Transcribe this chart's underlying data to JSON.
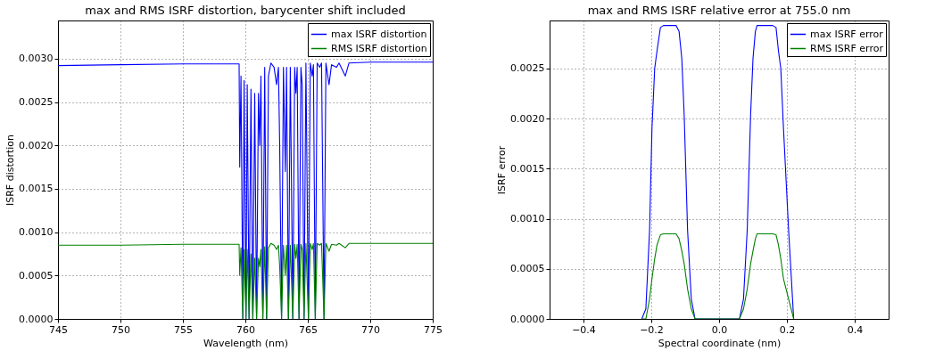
{
  "chart_data": [
    {
      "type": "line",
      "title": "max and RMS ISRF distortion, barycenter shift included",
      "xlabel": "Wavelength (nm)",
      "ylabel": "ISRF distortion",
      "x": [
        745,
        750,
        755,
        759.5,
        759.55,
        759.65,
        759.8,
        759.9,
        760.05,
        760.15,
        760.3,
        760.45,
        760.6,
        760.75,
        760.9,
        761.05,
        761.15,
        761.25,
        761.4,
        761.55,
        761.7,
        761.85,
        762.05,
        762.3,
        762.5,
        762.65,
        762.75,
        762.9,
        763.05,
        763.2,
        763.3,
        763.45,
        763.6,
        763.8,
        763.95,
        764.05,
        764.15,
        764.3,
        764.45,
        764.55,
        764.7,
        764.85,
        765.05,
        765.2,
        765.35,
        765.45,
        765.6,
        765.75,
        765.95,
        766.1,
        766.3,
        766.45,
        766.7,
        766.9,
        767.3,
        767.5,
        768,
        768.3,
        770,
        775
      ],
      "series": [
        {
          "name": "max ISRF distortion",
          "color": "#0000ff",
          "values": [
            0.00292,
            0.00293,
            0.00294,
            0.00294,
            0.00175,
            0.0028,
            0,
            0.00275,
            0,
            0.0027,
            0,
            0.00265,
            0,
            0.0026,
            0,
            0.0026,
            0.002,
            0.0028,
            0,
            0.0029,
            0,
            0.0028,
            0.00295,
            0.0029,
            0.0027,
            0.0029,
            0.002,
            0,
            0.0029,
            0.0017,
            0.0029,
            0,
            0.0029,
            0,
            0.0029,
            0.0026,
            0.0029,
            0,
            0.0029,
            0.0027,
            0,
            0.00295,
            0,
            0.00295,
            0.0028,
            0.00293,
            0,
            0.00295,
            0.0029,
            0.00295,
            0,
            0.00295,
            0.0027,
            0.00293,
            0.0029,
            0.00295,
            0.0028,
            0.00295,
            0.00296,
            0.00296
          ]
        },
        {
          "name": "RMS ISRF distortion",
          "color": "#008000",
          "values": [
            0.00085,
            0.00085,
            0.00086,
            0.00086,
            0.0005,
            0.00082,
            0,
            0.0008,
            0,
            0.0008,
            0,
            0.00075,
            0,
            0.0007,
            0,
            0.0007,
            0.0006,
            0.0008,
            0,
            0.00083,
            0,
            0.00082,
            0.00087,
            0.00085,
            0.0008,
            0.00085,
            0.0006,
            0,
            0.00085,
            0.0005,
            0.00085,
            0,
            0.00085,
            0,
            0.00086,
            0.0007,
            0.00086,
            0,
            0.00086,
            0.0008,
            0,
            0.00087,
            0,
            0.00087,
            0.0008,
            0.00087,
            0,
            0.00087,
            0.00085,
            0.00087,
            0,
            0.00087,
            0.00078,
            0.00086,
            0.00085,
            0.00087,
            0.00082,
            0.00087,
            0.00087,
            0.00087
          ]
        }
      ],
      "xlim": [
        745,
        775
      ],
      "xticks": [
        745,
        750,
        755,
        760,
        765,
        770,
        775
      ],
      "ylim": [
        0,
        0.00344
      ],
      "yticks": [
        {
          "value": 0,
          "label": "0.0000"
        },
        {
          "value": 0.0005,
          "label": "0.0005"
        },
        {
          "value": 0.001,
          "label": "0.0010"
        },
        {
          "value": 0.0015,
          "label": "0.0015"
        },
        {
          "value": 0.002,
          "label": "0.0020"
        },
        {
          "value": 0.0025,
          "label": "0.0025"
        },
        {
          "value": 0.003,
          "label": "0.0030"
        }
      ],
      "grid": true,
      "legend": "top right"
    },
    {
      "type": "line",
      "title": "max and RMS ISRF relative error at 755.0 nm",
      "xlabel": "Spectral coordinate (nm)",
      "ylabel": "ISRF error",
      "x": [
        -0.228,
        -0.216,
        -0.205,
        -0.198,
        -0.19,
        -0.183,
        -0.173,
        -0.164,
        -0.127,
        -0.118,
        -0.11,
        -0.103,
        -0.093,
        -0.082,
        -0.071,
        0.06,
        0.072,
        0.083,
        0.093,
        0.1,
        0.107,
        0.112,
        0.122,
        0.158,
        0.168,
        0.175,
        0.182,
        0.19,
        0.205,
        0.22
      ],
      "series": [
        {
          "name": "max ISRF error",
          "color": "#0000ff",
          "values": [
            0,
            0.0001,
            0.00089,
            0.0019,
            0.0025,
            0.00268,
            0.00291,
            0.00293,
            0.00293,
            0.00287,
            0.0026,
            0.00204,
            0.00089,
            0.0002,
            0,
            0,
            0.0002,
            0.00089,
            0.00204,
            0.0026,
            0.00287,
            0.00293,
            0.00293,
            0.00293,
            0.00291,
            0.00268,
            0.0025,
            0.0019,
            0.00089,
            0
          ]
        },
        {
          "name": "RMS ISRF error",
          "color": "#008000",
          "values": [
            0,
            0,
            0.0002,
            0.0004,
            0.0006,
            0.00074,
            0.00084,
            0.00085,
            0.00085,
            0.0008,
            0.00068,
            0.00055,
            0.0003,
            0.0001,
            0,
            0,
            0.0001,
            0.0003,
            0.00055,
            0.00068,
            0.0008,
            0.00085,
            0.00085,
            0.00085,
            0.00084,
            0.00074,
            0.0006,
            0.0004,
            0.0002,
            0
          ]
        }
      ],
      "xlim": [
        -0.5,
        0.5
      ],
      "xticks": [
        {
          "value": -0.4,
          "label": "−0.4"
        },
        {
          "value": -0.2,
          "label": "−0.2"
        },
        {
          "value": 0,
          "label": "0.0"
        },
        0.2,
        0.4
      ],
      "ylim": [
        0,
        0.00298
      ],
      "yticks": [
        {
          "value": 0,
          "label": "0.0000"
        },
        {
          "value": 0.0005,
          "label": "0.0005"
        },
        {
          "value": 0.001,
          "label": "0.0010"
        },
        {
          "value": 0.0015,
          "label": "0.0015"
        },
        {
          "value": 0.002,
          "label": "0.0020"
        },
        {
          "value": 0.0025,
          "label": "0.0025"
        }
      ],
      "grid": true,
      "legend": "top right"
    }
  ]
}
